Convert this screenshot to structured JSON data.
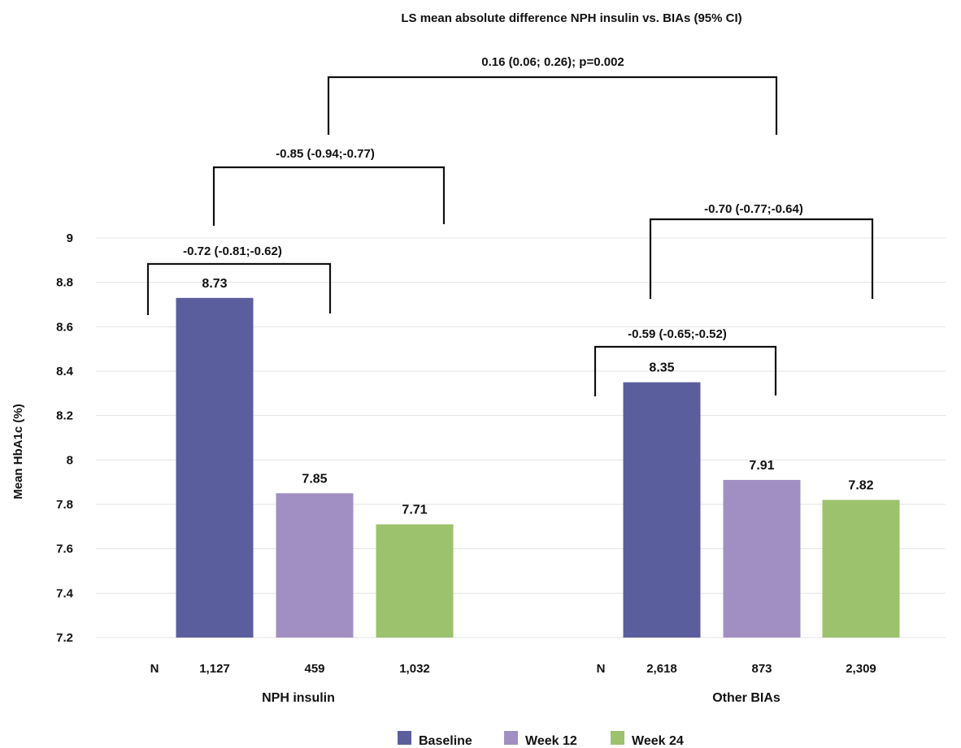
{
  "chart_data": {
    "type": "bar",
    "title": "LS mean absolute difference NPH insulin vs. BIAs (95% CI)",
    "ylabel": "Mean HbA1c (%)",
    "ylim": [
      7.2,
      9.0
    ],
    "yticks": [
      "7.2",
      "7.4",
      "7.6",
      "7.8",
      "8",
      "8.2",
      "8.4",
      "8.6",
      "8.8",
      "9"
    ],
    "grid": true,
    "legend_position": "bottom",
    "groups": [
      {
        "label": "NPH insulin",
        "values": [
          8.73,
          7.85,
          7.71
        ],
        "value_labels": [
          "8.73",
          "7.85",
          "7.71"
        ],
        "n_label": "N",
        "n_values": [
          "1,127",
          "459",
          "1,032"
        ]
      },
      {
        "label": "Other BIAs",
        "values": [
          8.35,
          7.91,
          7.82
        ],
        "value_labels": [
          "8.35",
          "7.91",
          "7.82"
        ],
        "n_label": "N",
        "n_values": [
          "2,618",
          "873",
          "2,309"
        ]
      }
    ],
    "series": [
      {
        "name": "Baseline",
        "color": "#5b5e9c"
      },
      {
        "name": "Week 12",
        "color": "#a18fc3"
      },
      {
        "name": "Week 24",
        "color": "#9cc26e"
      }
    ],
    "annotations": {
      "between_groups": "0.16 (0.06; 0.26); p=0.002",
      "nph_week24": "-0.85 (-0.94;-0.77)",
      "nph_week12": "-0.72 (-0.81;-0.62)",
      "bias_week24": "-0.70 (-0.77;-0.64)",
      "bias_week12": "-0.59 (-0.65;-0.52)"
    }
  }
}
